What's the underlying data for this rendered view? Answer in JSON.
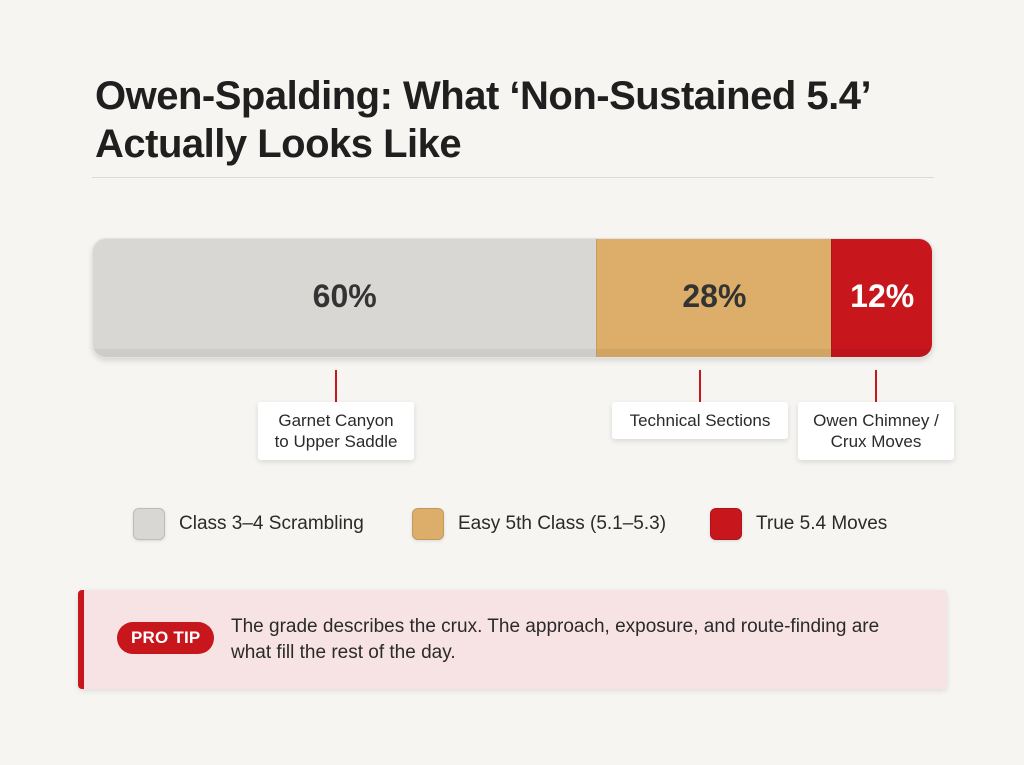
{
  "title": "Owen-Spalding: What ‘Non-Sustained 5.4’ Actually Looks Like",
  "chart_data": {
    "type": "bar",
    "orientation": "horizontal-stacked",
    "title": "Owen-Spalding: What ‘Non-Sustained 5.4’ Actually Looks Like",
    "categories": [
      "Class 3–4 Scrambling",
      "Easy 5th Class (5.1–5.3)",
      "True 5.4 Moves"
    ],
    "values": [
      60,
      28,
      12
    ],
    "value_labels": [
      "60%",
      "28%",
      "12%"
    ],
    "colors": [
      "#d9d7d3",
      "#dcae6a",
      "#c8161d"
    ],
    "label_colors": [
      "#333333",
      "#333333",
      "#ffffff"
    ],
    "annotations": [
      {
        "segment": 0,
        "text": "Garnet Canyon\nto Upper Saddle"
      },
      {
        "segment": 1,
        "text": "Technical Sections"
      },
      {
        "segment": 2,
        "text": "Owen Chimney /\nCrux Moves"
      }
    ],
    "legend": [
      {
        "label": "Class 3–4 Scrambling",
        "color": "#d9d7d3"
      },
      {
        "label": "Easy 5th Class (5.1–5.3)",
        "color": "#dcae6a"
      },
      {
        "label": "True 5.4 Moves",
        "color": "#c8161d"
      }
    ]
  },
  "tip": {
    "badge": "PRO TIP",
    "text": "The grade describes the crux. The approach, exposure, and route-finding are what fill the rest of the day."
  }
}
